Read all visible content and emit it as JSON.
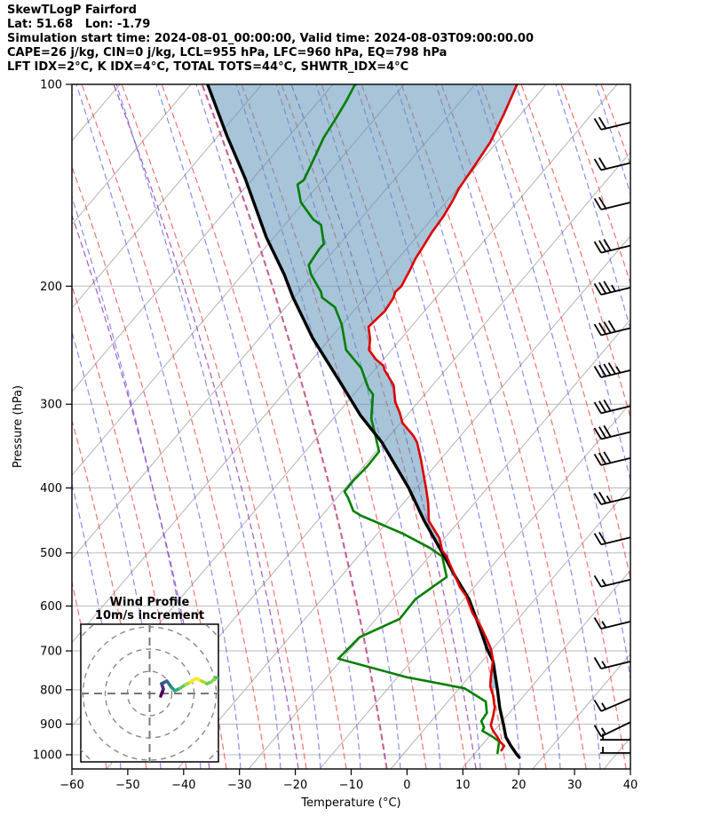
{
  "header": {
    "title": "SkewTLogP Fairford",
    "location_line": "Lat: 51.68   Lon: -1.79",
    "time_line": "Simulation start time: 2024-08-01_00:00:00, Valid time: 2024-08-03T09:00:00.00",
    "indices_line1": "CAPE=26 j/kg, CIN=0 j/kg, LCL=955 hPa, LFC=960 hPa, EQ=798 hPa",
    "indices_line2": "LFT IDX=2°C, K IDX=4°C, TOTAL TOTS=44°C, SHWTR_IDX=4°C"
  },
  "chart_data": {
    "type": "line",
    "subtype": "skew-t-log-p",
    "title": "SkewTLogP Fairford",
    "xlabel": "Temperature (°C)",
    "ylabel": "Pressure (hPa)",
    "x_ticks": [
      -60,
      -50,
      -40,
      -30,
      -20,
      -10,
      0,
      10,
      20,
      30,
      40
    ],
    "y_ticks": [
      100,
      200,
      300,
      400,
      500,
      600,
      700,
      800,
      900,
      1000
    ],
    "x_range": [
      -60,
      40
    ],
    "pressure_range": [
      100,
      1050
    ],
    "note": "x values are skewed-coordinate temperatures (value of the bottom axis directly below each point); pressure on log scale",
    "series": [
      {
        "name": "temperature",
        "color": "#dd0000",
        "width": 2.6,
        "points": [
          [
            100,
            19.7
          ],
          [
            111,
            17.3
          ],
          [
            122,
            14.9
          ],
          [
            133,
            11.9
          ],
          [
            143,
            9.3
          ],
          [
            149,
            8.2
          ],
          [
            157,
            6.6
          ],
          [
            166,
            4.5
          ],
          [
            174,
            3.0
          ],
          [
            182,
            1.5
          ],
          [
            188,
            0.7
          ],
          [
            200,
            -1.0
          ],
          [
            204,
            -2.1
          ],
          [
            208,
            -2.4
          ],
          [
            218,
            -4.0
          ],
          [
            230,
            -6.9
          ],
          [
            240,
            -6.6
          ],
          [
            249,
            -6.8
          ],
          [
            257,
            -5.6
          ],
          [
            263,
            -4.2
          ],
          [
            267,
            -4.0
          ],
          [
            281,
            -2.4
          ],
          [
            298,
            -2.1
          ],
          [
            309,
            -1.3
          ],
          [
            320,
            -0.8
          ],
          [
            334,
            1.1
          ],
          [
            342,
            1.8
          ],
          [
            363,
            2.5
          ],
          [
            400,
            3.4
          ],
          [
            422,
            3.8
          ],
          [
            448,
            3.9
          ],
          [
            475,
            5.8
          ],
          [
            496,
            6.3
          ],
          [
            506,
            7.1
          ],
          [
            520,
            7.7
          ],
          [
            563,
            9.5
          ],
          [
            580,
            10.6
          ],
          [
            614,
            11.7
          ],
          [
            646,
            13.3
          ],
          [
            673,
            14.3
          ],
          [
            694,
            15.0
          ],
          [
            722,
            15.4
          ],
          [
            767,
            15.0
          ],
          [
            791,
            14.9
          ],
          [
            815,
            15.4
          ],
          [
            851,
            15.7
          ],
          [
            877,
            15.4
          ],
          [
            904,
            15.0
          ],
          [
            921,
            15.4
          ],
          [
            941,
            16.2
          ],
          [
            955,
            16.6
          ],
          [
            970,
            17.4
          ],
          [
            985,
            16.9
          ]
        ]
      },
      {
        "name": "dewpoint",
        "color": "#007f00",
        "width": 2.6,
        "points": [
          [
            100,
            -9.3
          ],
          [
            106,
            -10.9
          ],
          [
            113,
            -12.9
          ],
          [
            120,
            -14.9
          ],
          [
            132,
            -17.2
          ],
          [
            139,
            -18.5
          ],
          [
            141,
            -19.6
          ],
          [
            150,
            -19.0
          ],
          [
            152,
            -18.5
          ],
          [
            159,
            -16.8
          ],
          [
            162,
            -15.4
          ],
          [
            166,
            -15.2
          ],
          [
            173,
            -14.9
          ],
          [
            176,
            -15.7
          ],
          [
            186,
            -17.6
          ],
          [
            192,
            -17.2
          ],
          [
            200,
            -16.0
          ],
          [
            204,
            -15.4
          ],
          [
            208,
            -15.2
          ],
          [
            215,
            -12.9
          ],
          [
            228,
            -11.7
          ],
          [
            249,
            -10.9
          ],
          [
            265,
            -8.2
          ],
          [
            284,
            -6.9
          ],
          [
            290,
            -6.1
          ],
          [
            315,
            -6.4
          ],
          [
            353,
            -5.0
          ],
          [
            372,
            -7.2
          ],
          [
            390,
            -9.6
          ],
          [
            405,
            -11.2
          ],
          [
            413,
            -10.6
          ],
          [
            433,
            -9.6
          ],
          [
            440,
            -8.2
          ],
          [
            448,
            -6.0
          ],
          [
            469,
            -0.5
          ],
          [
            492,
            4.2
          ],
          [
            506,
            6.3
          ],
          [
            543,
            7.1
          ],
          [
            586,
            1.5
          ],
          [
            627,
            -1.3
          ],
          [
            668,
            -8.5
          ],
          [
            719,
            -12.3
          ],
          [
            766,
            -0.1
          ],
          [
            796,
            10.3
          ],
          [
            833,
            14.1
          ],
          [
            866,
            14.3
          ],
          [
            891,
            13.3
          ],
          [
            911,
            13.8
          ],
          [
            921,
            13.5
          ],
          [
            941,
            15.4
          ],
          [
            955,
            16.5
          ],
          [
            994,
            16.2
          ]
        ]
      },
      {
        "name": "parcel",
        "color": "#000000",
        "width": 3.4,
        "points": [
          [
            100,
            -35.7
          ],
          [
            119,
            -32.3
          ],
          [
            138,
            -29.0
          ],
          [
            169,
            -25.2
          ],
          [
            192,
            -22.0
          ],
          [
            208,
            -20.4
          ],
          [
            239,
            -16.9
          ],
          [
            277,
            -12.1
          ],
          [
            312,
            -8.3
          ],
          [
            342,
            -4.5
          ],
          [
            400,
            0.3
          ],
          [
            448,
            3.1
          ],
          [
            496,
            6.1
          ],
          [
            543,
            8.7
          ],
          [
            586,
            11.1
          ],
          [
            646,
            13.0
          ],
          [
            694,
            14.3
          ],
          [
            725,
            15.4
          ],
          [
            800,
            16.2
          ],
          [
            851,
            16.6
          ],
          [
            904,
            17.3
          ],
          [
            941,
            17.7
          ],
          [
            970,
            18.6
          ],
          [
            1000,
            19.7
          ],
          [
            1009,
            20.1
          ]
        ]
      }
    ],
    "shading": {
      "name": "area-between-parcel-and-temperature",
      "color": "rgba(96,148,186,0.55)",
      "max_pressure": 800
    },
    "wind_barbs": {
      "units_note": "flags drawn as rendered; full=long feather, half=short feather",
      "levels": [
        {
          "p": 114,
          "full": 2,
          "half": 0
        },
        {
          "p": 131,
          "full": 2,
          "half": 0
        },
        {
          "p": 150,
          "full": 2,
          "half": 0
        },
        {
          "p": 174,
          "full": 3,
          "half": 0
        },
        {
          "p": 201,
          "full": 3,
          "half": 1
        },
        {
          "p": 231,
          "full": 4,
          "half": 0
        },
        {
          "p": 267,
          "full": 4,
          "half": 1
        },
        {
          "p": 302,
          "full": 3,
          "half": 0
        },
        {
          "p": 330,
          "full": 3,
          "half": 0
        },
        {
          "p": 361,
          "full": 3,
          "half": 0
        },
        {
          "p": 413,
          "full": 2,
          "half": 1
        },
        {
          "p": 474,
          "full": 2,
          "half": 0
        },
        {
          "p": 548,
          "full": 1,
          "half": 1
        },
        {
          "p": 633,
          "full": 1,
          "half": 1
        },
        {
          "p": 726,
          "full": 1,
          "half": 1
        },
        {
          "p": 825,
          "full": 1,
          "half": 1,
          "drop": 14
        },
        {
          "p": 894,
          "full": 1,
          "half": 1,
          "drop": 16
        },
        {
          "p": 950,
          "full": 0,
          "half": 1,
          "horizontal": true
        },
        {
          "p": 994,
          "full": 0,
          "half": 1,
          "horizontal": true
        }
      ]
    },
    "hodograph": {
      "title_line1": "Wind Profile",
      "title_line2": "10m/s increment",
      "ring_increment_ms": 10,
      "rings_ms": [
        10,
        20,
        30,
        40
      ],
      "trace_uv_ms": [
        [
          5,
          -1.2
        ],
        [
          6.2,
          2
        ],
        [
          5.4,
          4.4
        ],
        [
          7.8,
          5.6
        ],
        [
          9.8,
          2.8
        ],
        [
          11.4,
          1.2
        ],
        [
          13.8,
          2.4
        ],
        [
          16.2,
          4
        ],
        [
          18.6,
          5.2
        ],
        [
          21,
          6.8
        ],
        [
          23.4,
          5.6
        ],
        [
          25.8,
          4.4
        ],
        [
          27.8,
          5.2
        ],
        [
          29.8,
          7.2
        ],
        [
          31,
          6.8
        ]
      ],
      "segment_colors": [
        "#440154",
        "#46327e",
        "#3b528b",
        "#2c728e",
        "#21918c",
        "#27ad81",
        "#5ec962",
        "#aadc32",
        "#fde725",
        "#fde725",
        "#aadc32",
        "#5ec962",
        "#8fd744",
        "#4ac16d"
      ]
    },
    "grid_style": {
      "isotherm_color": "#b3b3b3",
      "pressure_grid_color": "#bbbbbb",
      "dry_adiabat_color": "rgba(235,80,80,0.8)",
      "moist_line_color": "rgba(90,90,235,0.7)",
      "mixed_line_color": "rgba(150,60,175,0.85)",
      "frame_color": "#000000"
    }
  }
}
